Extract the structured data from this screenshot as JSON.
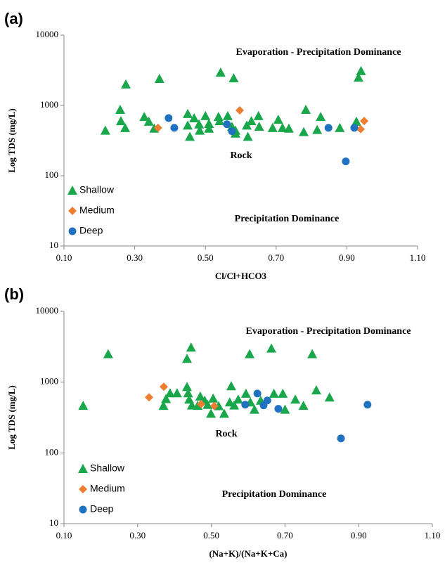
{
  "chart_data": [
    {
      "type": "scatter",
      "panel_label": "(a)",
      "xlabel": "Cl/Cl+HCO3",
      "ylabel": "Log TDS (mg/L)",
      "log_y": true,
      "grid": false,
      "legend": "lower left",
      "xlim": [
        0.1,
        1.1
      ],
      "xticks": [
        {
          "value": 0.1,
          "label": "0.10"
        },
        {
          "value": 0.3,
          "label": "0.30"
        },
        {
          "value": 0.5,
          "label": "0.50"
        },
        {
          "value": 0.7,
          "label": "0.70"
        },
        {
          "value": 0.9,
          "label": "0.90"
        },
        {
          "value": 1.1,
          "label": "1.10"
        }
      ],
      "ylim": [
        10,
        10000
      ],
      "yticks": [
        10,
        100,
        1000,
        10000
      ],
      "annotations": [
        "Evaporation - Precipitation Dominance",
        "Rock",
        "Precipitation Dominance"
      ],
      "series": [
        {
          "name": "Shallow",
          "color": "#1aa64a",
          "marker": "triangle",
          "x": [
            0.275,
            0.37,
            0.543,
            0.58,
            0.94,
            0.933,
            0.259,
            0.261,
            0.273,
            0.217,
            0.327,
            0.34,
            0.355,
            0.45,
            0.45,
            0.456,
            0.468,
            0.482,
            0.484,
            0.5,
            0.51,
            0.51,
            0.537,
            0.54,
            0.563,
            0.575,
            0.585,
            0.585,
            0.617,
            0.62,
            0.63,
            0.65,
            0.652,
            0.69,
            0.706,
            0.718,
            0.736,
            0.778,
            0.784,
            0.816,
            0.826,
            0.88,
            0.927
          ],
          "y": [
            2000,
            2400,
            2950,
            2450,
            3100,
            2500,
            870,
            600,
            480,
            440,
            690,
            590,
            470,
            760,
            520,
            360,
            660,
            540,
            440,
            710,
            550,
            470,
            690,
            600,
            710,
            500,
            440,
            400,
            520,
            360,
            600,
            710,
            500,
            480,
            630,
            480,
            470,
            420,
            870,
            450,
            690,
            480,
            590
          ]
        },
        {
          "name": "Medium",
          "color": "#ed7d31",
          "marker": "diamond",
          "x": [
            0.366,
            0.597,
            0.939,
            0.949
          ],
          "y": [
            480,
            850,
            460,
            600
          ]
        },
        {
          "name": "Deep",
          "color": "#2072c0",
          "marker": "circle",
          "x": [
            0.396,
            0.412,
            0.561,
            0.575,
            0.848,
            0.897,
            0.921
          ],
          "y": [
            660,
            480,
            540,
            430,
            480,
            160,
            480
          ]
        }
      ]
    },
    {
      "type": "scatter",
      "panel_label": "(b)",
      "xlabel": "(Na+K)/(Na+K+Ca)",
      "ylabel": "Log TDS (mg/L)",
      "log_y": true,
      "grid": false,
      "legend": "lower left",
      "xlim": [
        0.1,
        1.1
      ],
      "xticks": [
        {
          "value": 0.1,
          "label": "0.10"
        },
        {
          "value": 0.3,
          "label": "0.30"
        },
        {
          "value": 0.5,
          "label": "0.50"
        },
        {
          "value": 0.7,
          "label": "0.70"
        },
        {
          "value": 0.9,
          "label": "0.90"
        },
        {
          "value": 1.1,
          "label": "1.10"
        }
      ],
      "ylim": [
        10,
        10000
      ],
      "yticks": [
        10,
        100,
        1000,
        10000
      ],
      "annotations": [
        "Evaporation - Precipitation Dominance",
        "Rock",
        "Precipitation Dominance"
      ],
      "series": [
        {
          "name": "Shallow",
          "color": "#1aa64a",
          "marker": "triangle",
          "x": [
            0.22,
            0.434,
            0.445,
            0.663,
            0.774,
            0.604,
            0.152,
            0.37,
            0.377,
            0.388,
            0.407,
            0.434,
            0.437,
            0.44,
            0.447,
            0.463,
            0.47,
            0.482,
            0.49,
            0.499,
            0.505,
            0.52,
            0.535,
            0.55,
            0.554,
            0.562,
            0.573,
            0.594,
            0.606,
            0.617,
            0.634,
            0.67,
            0.694,
            0.7,
            0.728,
            0.75,
            0.785,
            0.821
          ],
          "y": [
            2500,
            2150,
            3100,
            3000,
            2500,
            2500,
            465,
            465,
            580,
            700,
            700,
            860,
            700,
            570,
            470,
            465,
            630,
            550,
            480,
            360,
            590,
            460,
            360,
            520,
            880,
            470,
            570,
            690,
            520,
            410,
            550,
            690,
            690,
            410,
            570,
            465,
            770,
            610
          ]
        },
        {
          "name": "Medium",
          "color": "#ed7d31",
          "marker": "diamond",
          "x": [
            0.331,
            0.371,
            0.472,
            0.508
          ],
          "y": [
            610,
            860,
            490,
            460
          ]
        },
        {
          "name": "Deep",
          "color": "#2072c0",
          "marker": "circle",
          "x": [
            0.592,
            0.625,
            0.652,
            0.642,
            0.682,
            0.852,
            0.924
          ],
          "y": [
            480,
            690,
            550,
            470,
            420,
            160,
            480
          ]
        }
      ]
    }
  ]
}
